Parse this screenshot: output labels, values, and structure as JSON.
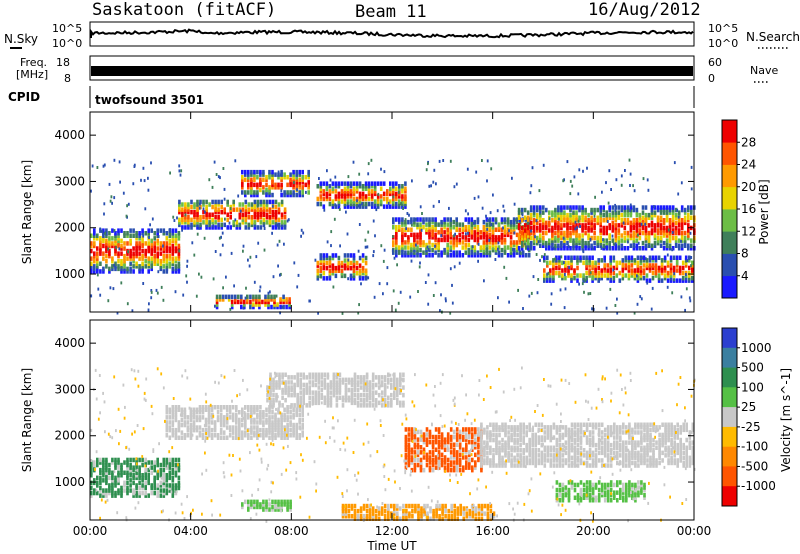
{
  "header": {
    "station": "Saskatoon (fitACF)",
    "beam": "Beam 11",
    "date": "16/Aug/2012"
  },
  "top_panels": {
    "nsky_label": "N.Sky",
    "nsky_axis": [
      "10^5",
      "10^0"
    ],
    "nsearch_label": "N.Search",
    "nsearch_axis": [
      "10^5",
      "10^0"
    ],
    "freq_label": "Freq.",
    "freq_unit": "[MHz]",
    "freq_axis": [
      "18",
      "8"
    ],
    "nave_label": "Nave",
    "nave_axis": [
      "60",
      "0"
    ],
    "cpid_label": "CPID",
    "cpid_value": "twofsound 3501"
  },
  "chart_data": [
    {
      "type": "heatmap",
      "name": "power",
      "ylabel": "Slant Range [km]",
      "ylim": [
        180,
        4500
      ],
      "yticks": [
        "1000",
        "2000",
        "3000",
        "4000"
      ],
      "xticks": [
        "00:00",
        "04:00",
        "08:00",
        "12:00",
        "16:00",
        "20:00",
        "00:00"
      ],
      "colorbar": {
        "label": "Power [dB]",
        "ticks": [
          "4",
          "8",
          "12",
          "16",
          "20",
          "24",
          "28"
        ],
        "colors": [
          "#1a1aff",
          "#2a4fb0",
          "#3f7f5a",
          "#6cbd45",
          "#e8d300",
          "#ff9a00",
          "#ff5500",
          "#ee0000"
        ]
      },
      "echo_bands": [
        {
          "t0": 0.0,
          "t1": 3.5,
          "r": 1500,
          "dr": 450
        },
        {
          "t0": 3.5,
          "t1": 7.8,
          "r": 2300,
          "dr": 300
        },
        {
          "t0": 6.0,
          "t1": 8.7,
          "r": 2950,
          "dr": 250
        },
        {
          "t0": 9.0,
          "t1": 12.5,
          "r": 2700,
          "dr": 250
        },
        {
          "t0": 12.0,
          "t1": 17.5,
          "r": 1800,
          "dr": 400
        },
        {
          "t0": 17.0,
          "t1": 24.0,
          "r": 2000,
          "dr": 450
        },
        {
          "t0": 18.0,
          "t1": 24.0,
          "r": 1100,
          "dr": 250
        },
        {
          "t0": 5.0,
          "t1": 8.0,
          "r": 400,
          "dr": 120
        },
        {
          "t0": 9.0,
          "t1": 11.0,
          "r": 1150,
          "dr": 250
        }
      ]
    },
    {
      "type": "heatmap",
      "name": "velocity",
      "ylabel": "Slant Range [km]",
      "ylim": [
        180,
        4500
      ],
      "yticks": [
        "1000",
        "2000",
        "3000",
        "4000"
      ],
      "xticks": [
        "00:00",
        "04:00",
        "08:00",
        "12:00",
        "16:00",
        "20:00",
        "00:00"
      ],
      "xlabel": "Time UT",
      "colorbar": {
        "label": "Velocity [m s^-1]",
        "ticks": [
          "1000",
          "500",
          "100",
          "25",
          "-25",
          "-100",
          "-500",
          "-1000"
        ],
        "colors": [
          "#2b3fd0",
          "#3a7fa0",
          "#2e8f4f",
          "#55c045",
          "#c8c8c8",
          "#ffbb00",
          "#ff8800",
          "#ff5500",
          "#ee0000"
        ]
      },
      "echo_bands": [
        {
          "t0": 0.0,
          "t1": 3.5,
          "r": 1100,
          "dr": 400,
          "v": "green"
        },
        {
          "t0": 3.0,
          "t1": 8.5,
          "r": 2300,
          "dr": 350,
          "v": "gray"
        },
        {
          "t0": 7.0,
          "t1": 12.5,
          "r": 3000,
          "dr": 350,
          "v": "gray"
        },
        {
          "t0": 12.5,
          "t1": 15.5,
          "r": 1700,
          "dr": 450,
          "v": "red"
        },
        {
          "t0": 15.5,
          "t1": 24.0,
          "r": 1800,
          "dr": 450,
          "v": "gray"
        },
        {
          "t0": 18.5,
          "t1": 22.0,
          "r": 800,
          "dr": 200,
          "v": "lightgreen"
        },
        {
          "t0": 10.0,
          "t1": 16.0,
          "r": 350,
          "dr": 150,
          "v": "orange"
        },
        {
          "t0": 6.0,
          "t1": 8.0,
          "r": 500,
          "dr": 100,
          "v": "lightgreen"
        }
      ]
    }
  ]
}
